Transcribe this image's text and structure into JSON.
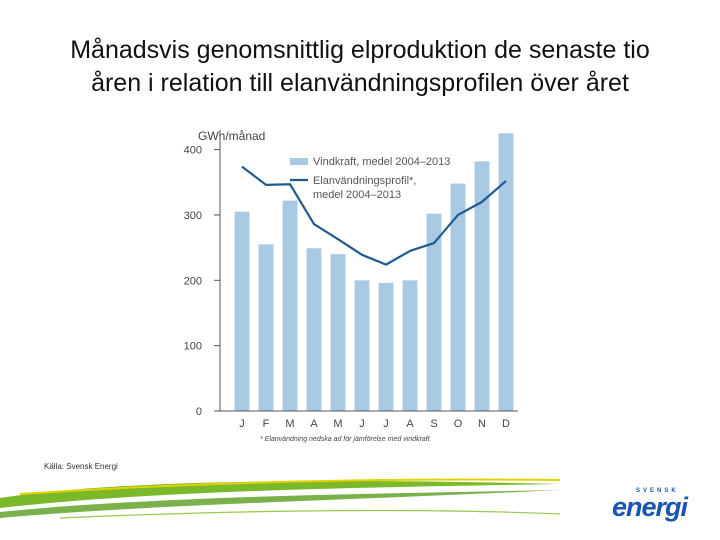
{
  "title": {
    "line1": "Månadsvis genomsnittlig elproduktion de senaste tio",
    "line2": "åren i relation till elanvändningsprofilen över året"
  },
  "source": "Källa: Svensk Energi",
  "logo": {
    "small_text": "SVENSK",
    "main_text": "energi"
  },
  "colors": {
    "bar": "#a9c9e2",
    "line": "#1f5b8e",
    "axis": "#555555",
    "swoosh_green": "#7ab929",
    "swoosh_yellow": "#e5d100"
  },
  "chart_data": {
    "type": "bar",
    "title": "",
    "ylabel": "GWh/månad",
    "xlabel": "",
    "categories": [
      "J",
      "F",
      "M",
      "A",
      "M",
      "J",
      "J",
      "A",
      "S",
      "O",
      "N",
      "D"
    ],
    "ylim": [
      0,
      430
    ],
    "yticks": [
      0,
      100,
      200,
      300,
      400
    ],
    "series": [
      {
        "name": "Vindkraft, medel 2004–2013",
        "kind": "bar",
        "values": [
          305,
          255,
          322,
          249,
          240,
          200,
          196,
          200,
          302,
          348,
          382,
          425
        ]
      },
      {
        "name": "Elanvändningsprofil*, medel 2004–2013",
        "kind": "line",
        "values": [
          374,
          346,
          347,
          286,
          263,
          239,
          224,
          245,
          257,
          300,
          320,
          352
        ]
      }
    ],
    "legend": {
      "bar_label": "Vindkraft, medel 2004–2013",
      "line_label_1": "Elanvändningsprofil*,",
      "line_label_2": "medel 2004–2013",
      "placement": "top-right"
    },
    "footnote": "* Elanvändning nedska ad för jämförelse med vindkraft"
  }
}
